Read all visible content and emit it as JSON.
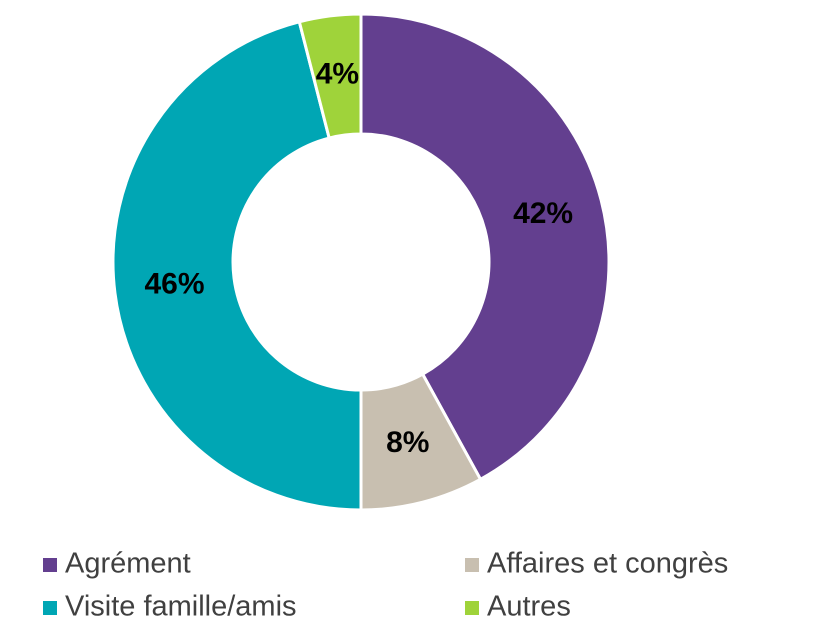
{
  "chart_data": {
    "type": "donut",
    "categories": [
      "Agrément",
      "Affaires et congrès",
      "Visite famille/amis",
      "Autres"
    ],
    "values": [
      42,
      8,
      46,
      4
    ],
    "value_labels": [
      "42%",
      "8%",
      "46%",
      "4%"
    ],
    "colors": [
      "#633f8f",
      "#c8bfb0",
      "#00a6b4",
      "#9fd33a"
    ]
  }
}
